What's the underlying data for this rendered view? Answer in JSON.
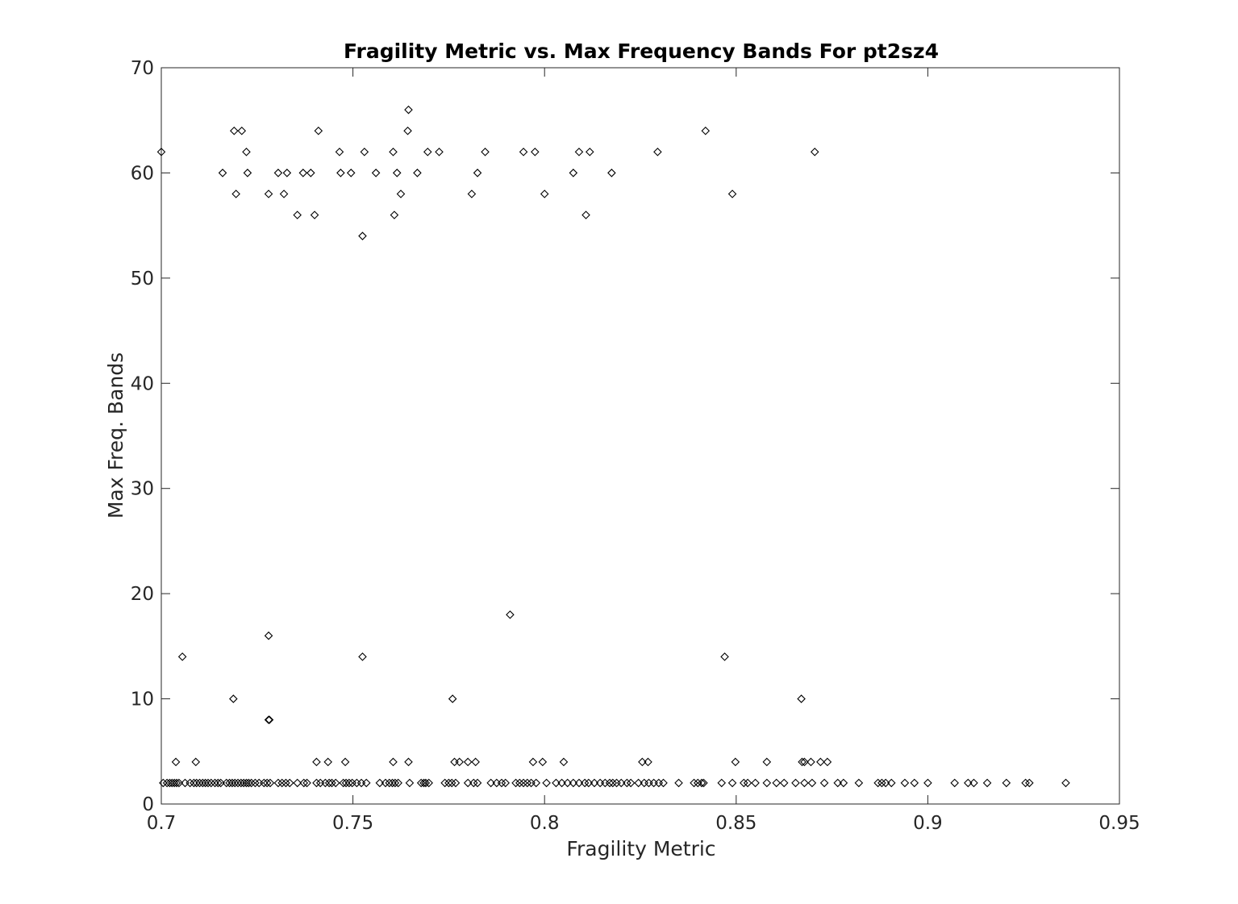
{
  "chart_data": {
    "type": "scatter",
    "title": "Fragility Metric vs. Max Frequency Bands For pt2sz4",
    "xlabel": "Fragility Metric",
    "ylabel": "Max Freq. Bands",
    "xlim": [
      0.7,
      0.95
    ],
    "ylim": [
      0,
      70
    ],
    "xticks": [
      0.7,
      0.75,
      0.8,
      0.85,
      0.9,
      0.95
    ],
    "xtick_labels": [
      "0.7",
      "0.75",
      "0.8",
      "0.85",
      "0.9",
      "0.95"
    ],
    "yticks": [
      0,
      10,
      20,
      30,
      40,
      50,
      60,
      70
    ],
    "ytick_labels": [
      "0",
      "10",
      "20",
      "30",
      "40",
      "50",
      "60",
      "70"
    ],
    "grid": false,
    "marker": "diamond",
    "marker_color": "#000000",
    "series": [
      {
        "points": [
          [
            0.7,
            62
          ],
          [
            0.716,
            60
          ],
          [
            0.719,
            64
          ],
          [
            0.7195,
            58
          ],
          [
            0.721,
            64
          ],
          [
            0.7222,
            62
          ],
          [
            0.7225,
            60
          ],
          [
            0.728,
            58
          ],
          [
            0.7305,
            60
          ],
          [
            0.732,
            58
          ],
          [
            0.7328,
            60
          ],
          [
            0.7355,
            56
          ],
          [
            0.737,
            60
          ],
          [
            0.739,
            60
          ],
          [
            0.74,
            56
          ],
          [
            0.741,
            64
          ],
          [
            0.7465,
            62
          ],
          [
            0.7468,
            60
          ],
          [
            0.7495,
            60
          ],
          [
            0.7525,
            54
          ],
          [
            0.753,
            62
          ],
          [
            0.756,
            60
          ],
          [
            0.7605,
            62
          ],
          [
            0.7608,
            56
          ],
          [
            0.7615,
            60
          ],
          [
            0.7625,
            58
          ],
          [
            0.7643,
            64
          ],
          [
            0.7645,
            66
          ],
          [
            0.7668,
            60
          ],
          [
            0.7695,
            62
          ],
          [
            0.7725,
            62
          ],
          [
            0.781,
            58
          ],
          [
            0.7825,
            60
          ],
          [
            0.7845,
            62
          ],
          [
            0.7945,
            62
          ],
          [
            0.7975,
            62
          ],
          [
            0.8,
            58
          ],
          [
            0.8075,
            60
          ],
          [
            0.809,
            62
          ],
          [
            0.8108,
            56
          ],
          [
            0.8118,
            62
          ],
          [
            0.8175,
            60
          ],
          [
            0.8295,
            62
          ],
          [
            0.842,
            64
          ],
          [
            0.849,
            58
          ],
          [
            0.8705,
            62
          ],
          [
            0.791,
            18
          ],
          [
            0.728,
            16
          ],
          [
            0.7055,
            14
          ],
          [
            0.7525,
            14
          ],
          [
            0.847,
            14
          ],
          [
            0.7188,
            10
          ],
          [
            0.776,
            10
          ],
          [
            0.867,
            10
          ],
          [
            0.728,
            8
          ],
          [
            0.7282,
            8
          ],
          [
            0.7038,
            4
          ],
          [
            0.709,
            4
          ],
          [
            0.7405,
            4
          ],
          [
            0.7435,
            4
          ],
          [
            0.748,
            4
          ],
          [
            0.7605,
            4
          ],
          [
            0.7645,
            4
          ],
          [
            0.7765,
            4
          ],
          [
            0.7778,
            4
          ],
          [
            0.78,
            4
          ],
          [
            0.782,
            4
          ],
          [
            0.797,
            4
          ],
          [
            0.7995,
            4
          ],
          [
            0.805,
            4
          ],
          [
            0.8255,
            4
          ],
          [
            0.827,
            4
          ],
          [
            0.8498,
            4
          ],
          [
            0.858,
            4
          ],
          [
            0.8672,
            4
          ],
          [
            0.8678,
            4
          ],
          [
            0.8695,
            4
          ],
          [
            0.872,
            4
          ],
          [
            0.8738,
            4
          ],
          [
            0.7005,
            2
          ],
          [
            0.7015,
            2
          ],
          [
            0.7022,
            2
          ],
          [
            0.7028,
            2
          ],
          [
            0.7034,
            2
          ],
          [
            0.704,
            2
          ],
          [
            0.7046,
            2
          ],
          [
            0.7062,
            2
          ],
          [
            0.7075,
            2
          ],
          [
            0.7085,
            2
          ],
          [
            0.7092,
            2
          ],
          [
            0.71,
            2
          ],
          [
            0.7108,
            2
          ],
          [
            0.7115,
            2
          ],
          [
            0.7122,
            2
          ],
          [
            0.713,
            2
          ],
          [
            0.714,
            2
          ],
          [
            0.7148,
            2
          ],
          [
            0.7155,
            2
          ],
          [
            0.717,
            2
          ],
          [
            0.7178,
            2
          ],
          [
            0.7185,
            2
          ],
          [
            0.7192,
            2
          ],
          [
            0.72,
            2
          ],
          [
            0.7208,
            2
          ],
          [
            0.7215,
            2
          ],
          [
            0.7222,
            2
          ],
          [
            0.7228,
            2
          ],
          [
            0.7235,
            2
          ],
          [
            0.7245,
            2
          ],
          [
            0.7255,
            2
          ],
          [
            0.7268,
            2
          ],
          [
            0.7276,
            2
          ],
          [
            0.7284,
            2
          ],
          [
            0.7305,
            2
          ],
          [
            0.7315,
            2
          ],
          [
            0.7325,
            2
          ],
          [
            0.7335,
            2
          ],
          [
            0.7355,
            2
          ],
          [
            0.7372,
            2
          ],
          [
            0.738,
            2
          ],
          [
            0.7405,
            2
          ],
          [
            0.7415,
            2
          ],
          [
            0.7428,
            2
          ],
          [
            0.7438,
            2
          ],
          [
            0.7445,
            2
          ],
          [
            0.7455,
            2
          ],
          [
            0.7475,
            2
          ],
          [
            0.7482,
            2
          ],
          [
            0.749,
            2
          ],
          [
            0.7498,
            2
          ],
          [
            0.751,
            2
          ],
          [
            0.7522,
            2
          ],
          [
            0.7535,
            2
          ],
          [
            0.757,
            2
          ],
          [
            0.7585,
            2
          ],
          [
            0.7595,
            2
          ],
          [
            0.7603,
            2
          ],
          [
            0.761,
            2
          ],
          [
            0.7618,
            2
          ],
          [
            0.7648,
            2
          ],
          [
            0.7678,
            2
          ],
          [
            0.7685,
            2
          ],
          [
            0.769,
            2
          ],
          [
            0.7698,
            2
          ],
          [
            0.774,
            2
          ],
          [
            0.775,
            2
          ],
          [
            0.7758,
            2
          ],
          [
            0.7768,
            2
          ],
          [
            0.78,
            2
          ],
          [
            0.7815,
            2
          ],
          [
            0.7825,
            2
          ],
          [
            0.786,
            2
          ],
          [
            0.7875,
            2
          ],
          [
            0.7888,
            2
          ],
          [
            0.7898,
            2
          ],
          [
            0.7925,
            2
          ],
          [
            0.7935,
            2
          ],
          [
            0.7945,
            2
          ],
          [
            0.7955,
            2
          ],
          [
            0.7965,
            2
          ],
          [
            0.7978,
            2
          ],
          [
            0.8005,
            2
          ],
          [
            0.803,
            2
          ],
          [
            0.8045,
            2
          ],
          [
            0.806,
            2
          ],
          [
            0.8075,
            2
          ],
          [
            0.809,
            2
          ],
          [
            0.8105,
            2
          ],
          [
            0.8115,
            2
          ],
          [
            0.813,
            2
          ],
          [
            0.8145,
            2
          ],
          [
            0.8158,
            2
          ],
          [
            0.817,
            2
          ],
          [
            0.8178,
            2
          ],
          [
            0.8188,
            2
          ],
          [
            0.82,
            2
          ],
          [
            0.8215,
            2
          ],
          [
            0.8225,
            2
          ],
          [
            0.8245,
            2
          ],
          [
            0.826,
            2
          ],
          [
            0.8272,
            2
          ],
          [
            0.8285,
            2
          ],
          [
            0.8298,
            2
          ],
          [
            0.831,
            2
          ],
          [
            0.835,
            2
          ],
          [
            0.839,
            2
          ],
          [
            0.84,
            2
          ],
          [
            0.841,
            2
          ],
          [
            0.8415,
            2
          ],
          [
            0.8462,
            2
          ],
          [
            0.849,
            2
          ],
          [
            0.852,
            2
          ],
          [
            0.853,
            2
          ],
          [
            0.855,
            2
          ],
          [
            0.858,
            2
          ],
          [
            0.8605,
            2
          ],
          [
            0.8625,
            2
          ],
          [
            0.8655,
            2
          ],
          [
            0.8678,
            2
          ],
          [
            0.8698,
            2
          ],
          [
            0.873,
            2
          ],
          [
            0.8765,
            2
          ],
          [
            0.878,
            2
          ],
          [
            0.882,
            2
          ],
          [
            0.887,
            2
          ],
          [
            0.888,
            2
          ],
          [
            0.889,
            2
          ],
          [
            0.8905,
            2
          ],
          [
            0.894,
            2
          ],
          [
            0.8965,
            2
          ],
          [
            0.9,
            2
          ],
          [
            0.907,
            2
          ],
          [
            0.9105,
            2
          ],
          [
            0.912,
            2
          ],
          [
            0.9155,
            2
          ],
          [
            0.9205,
            2
          ],
          [
            0.9255,
            2
          ],
          [
            0.9265,
            2
          ],
          [
            0.936,
            2
          ]
        ]
      }
    ]
  }
}
